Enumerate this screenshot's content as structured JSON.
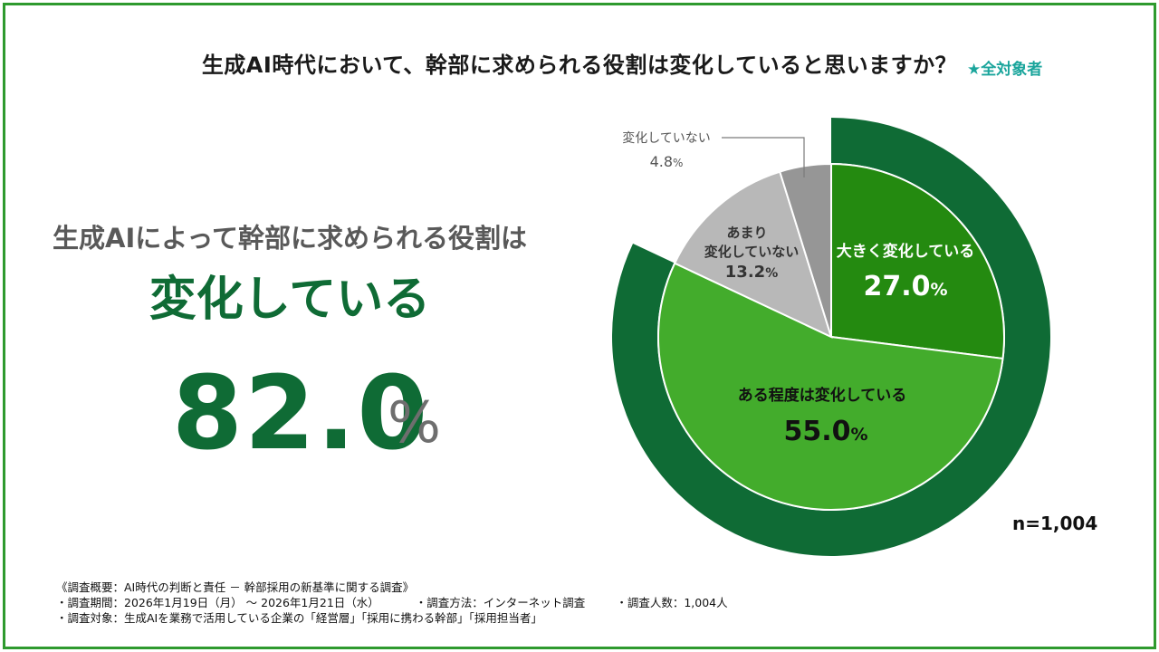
{
  "title": "生成AI時代において、幹部に求められる役割は変化していると思いますか？",
  "audience": "★全対象者",
  "summary": {
    "lead": "生成AIによって幹部に求められる役割は",
    "headline": "変化している",
    "value": "82.0",
    "unit": "%"
  },
  "chart_data": {
    "type": "pie",
    "categories": [
      "大きく変化している",
      "ある程度は変化している",
      "あまり変化していない",
      "変化していない"
    ],
    "values": [
      27.0,
      55.0,
      13.2,
      4.8
    ],
    "value_labels": [
      "27.0%",
      "55.0%",
      "13.2%",
      "4.8%"
    ],
    "unit": "%",
    "outer_ring": {
      "label": "変化している",
      "value": 82.0
    },
    "colors": [
      "#248a10",
      "#43ac2c",
      "#b8b8b8",
      "#969696",
      "#0f6b35"
    ],
    "n": "n=1,004"
  },
  "labels": {
    "slice1_line1": "大きく変化している",
    "slice1_value": "27.0",
    "slice2_line1": "ある程度は変化している",
    "slice2_value": "55.0",
    "slice3_line1": "あまり",
    "slice3_line2": "変化していない",
    "slice3_value": "13.2",
    "slice4_line1": "変化していない",
    "slice4_value": "4.8",
    "pct": "%"
  },
  "footer": {
    "line1": "《調査概要：AI時代の判断と責任 － 幹部採用の新基準に関する調査》",
    "period": "・調査期間：2026年1月19日（月） 〜 2026年1月21日（水）",
    "method": "・調査方法：インターネット調査",
    "count": "・調査人数：1,004人",
    "target": "・調査対象：生成AIを業務で活用している企業の「経営層」「採用に携わる幹部」「採用担当者」"
  }
}
